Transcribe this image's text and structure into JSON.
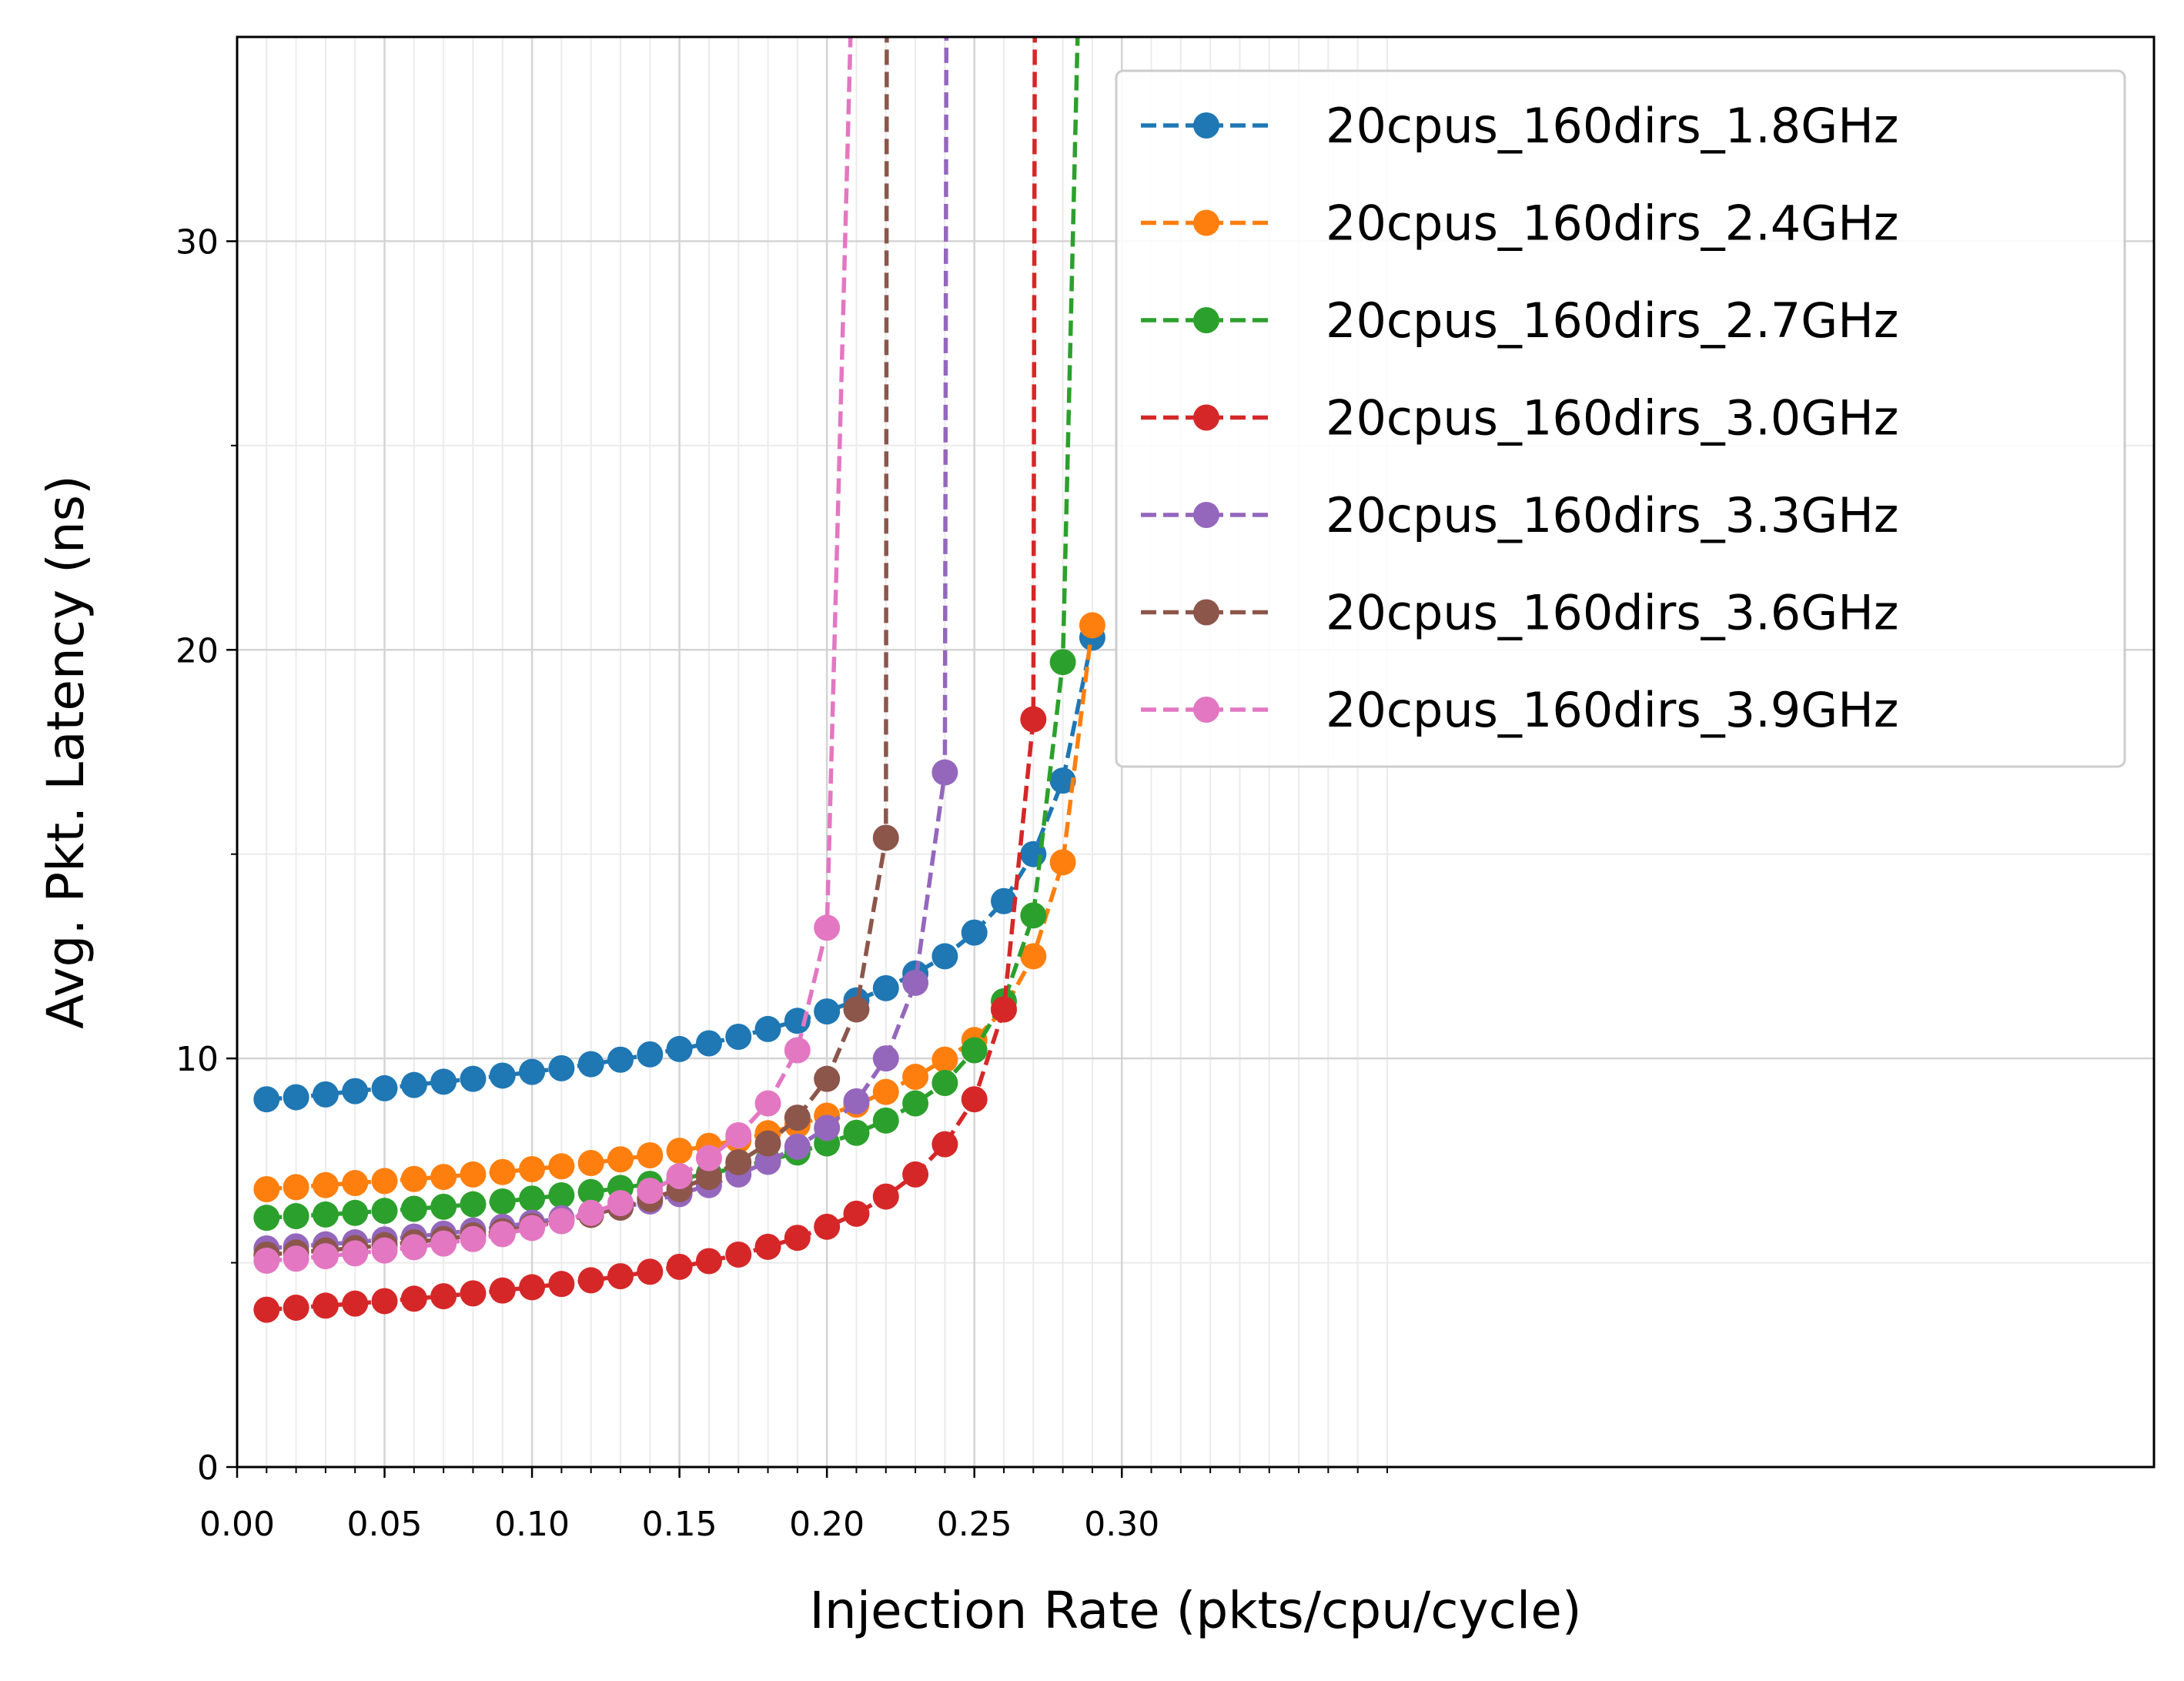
{
  "chart_data": {
    "type": "line",
    "title": "",
    "xlabel": "Injection Rate  (pkts/cpu/cycle)",
    "ylabel": "Avg. Pkt. Latency (ns)",
    "xlim": [
      0,
      0.65
    ],
    "ylim": [
      0,
      35
    ],
    "x_ticks": [
      0.0,
      0.05,
      0.1,
      0.15,
      0.2,
      0.25,
      0.3
    ],
    "x_tick_labels": [
      "0.00",
      "0.05",
      "0.10",
      "0.15",
      "0.20",
      "0.25",
      "0.30"
    ],
    "y_ticks": [
      0,
      10,
      20,
      30
    ],
    "y_tick_labels": [
      "0",
      "10",
      "20",
      "30"
    ],
    "grid": true,
    "legend_position": "top-right",
    "line_style": "dashed",
    "marker": "circle",
    "series": [
      {
        "name": "20cpus_160dirs_1.8GHz",
        "color": "#1f77b4",
        "x": [
          0.01,
          0.02,
          0.03,
          0.04,
          0.05,
          0.06,
          0.07,
          0.08,
          0.09,
          0.1,
          0.11,
          0.12,
          0.13,
          0.14,
          0.15,
          0.16,
          0.17,
          0.18,
          0.19,
          0.2,
          0.21,
          0.22,
          0.23,
          0.24,
          0.25,
          0.26,
          0.27,
          0.28,
          0.29
        ],
        "y": [
          9.0,
          9.05,
          9.12,
          9.2,
          9.27,
          9.35,
          9.43,
          9.5,
          9.58,
          9.67,
          9.76,
          9.86,
          9.97,
          10.1,
          10.23,
          10.37,
          10.53,
          10.72,
          10.92,
          11.15,
          11.42,
          11.72,
          12.08,
          12.5,
          13.08,
          13.85,
          15.0,
          16.8,
          20.3
        ]
      },
      {
        "name": "20cpus_160dirs_2.4GHz",
        "color": "#ff7f0e",
        "x": [
          0.01,
          0.02,
          0.03,
          0.04,
          0.05,
          0.06,
          0.07,
          0.08,
          0.09,
          0.1,
          0.11,
          0.12,
          0.13,
          0.14,
          0.15,
          0.16,
          0.17,
          0.18,
          0.19,
          0.2,
          0.21,
          0.22,
          0.23,
          0.24,
          0.25,
          0.26,
          0.27,
          0.28,
          0.29
        ],
        "y": [
          6.8,
          6.85,
          6.9,
          6.95,
          7.0,
          7.05,
          7.1,
          7.16,
          7.22,
          7.29,
          7.36,
          7.44,
          7.53,
          7.63,
          7.74,
          7.86,
          8.0,
          8.17,
          8.37,
          8.6,
          8.87,
          9.18,
          9.55,
          9.97,
          10.45,
          11.2,
          12.5,
          14.8,
          20.6
        ]
      },
      {
        "name": "20cpus_160dirs_2.7GHz",
        "color": "#2ca02c",
        "x": [
          0.01,
          0.02,
          0.03,
          0.04,
          0.05,
          0.06,
          0.07,
          0.08,
          0.09,
          0.1,
          0.11,
          0.12,
          0.13,
          0.14,
          0.15,
          0.16,
          0.17,
          0.18,
          0.19,
          0.2,
          0.21,
          0.22,
          0.23,
          0.24,
          0.25,
          0.26,
          0.27,
          0.28,
          0.285
        ],
        "y": [
          6.1,
          6.14,
          6.18,
          6.22,
          6.27,
          6.32,
          6.37,
          6.43,
          6.5,
          6.57,
          6.65,
          6.73,
          6.83,
          6.93,
          7.05,
          7.18,
          7.33,
          7.5,
          7.7,
          7.92,
          8.18,
          8.48,
          8.9,
          9.4,
          10.2,
          11.4,
          13.5,
          19.7,
          35
        ]
      },
      {
        "name": "20cpus_160dirs_3.0GHz",
        "color": "#d62728",
        "x": [
          0.01,
          0.02,
          0.03,
          0.04,
          0.05,
          0.06,
          0.07,
          0.08,
          0.09,
          0.1,
          0.11,
          0.12,
          0.13,
          0.14,
          0.15,
          0.16,
          0.17,
          0.18,
          0.19,
          0.2,
          0.21,
          0.22,
          0.23,
          0.24,
          0.25,
          0.26,
          0.27,
          0.2705
        ],
        "y": [
          3.85,
          3.9,
          3.95,
          4.0,
          4.06,
          4.12,
          4.18,
          4.25,
          4.32,
          4.4,
          4.48,
          4.57,
          4.67,
          4.78,
          4.9,
          5.04,
          5.2,
          5.39,
          5.61,
          5.88,
          6.2,
          6.62,
          7.16,
          7.9,
          9.0,
          11.2,
          18.3,
          35
        ]
      },
      {
        "name": "20cpus_160dirs_3.3GHz",
        "color": "#9467bd",
        "x": [
          0.01,
          0.02,
          0.03,
          0.04,
          0.05,
          0.06,
          0.07,
          0.08,
          0.09,
          0.1,
          0.11,
          0.12,
          0.13,
          0.14,
          0.15,
          0.16,
          0.17,
          0.18,
          0.19,
          0.2,
          0.21,
          0.22,
          0.23,
          0.24,
          0.2405
        ],
        "y": [
          5.35,
          5.4,
          5.45,
          5.5,
          5.57,
          5.64,
          5.71,
          5.79,
          5.88,
          5.98,
          6.09,
          6.21,
          6.35,
          6.5,
          6.68,
          6.9,
          7.16,
          7.47,
          7.84,
          8.3,
          8.95,
          10.0,
          11.85,
          17.0,
          35
        ]
      },
      {
        "name": "20cpus_160dirs_3.6GHz",
        "color": "#8c564b",
        "x": [
          0.01,
          0.02,
          0.03,
          0.04,
          0.05,
          0.06,
          0.07,
          0.08,
          0.09,
          0.1,
          0.11,
          0.12,
          0.13,
          0.14,
          0.15,
          0.16,
          0.17,
          0.18,
          0.19,
          0.2,
          0.21,
          0.22,
          0.2203
        ],
        "y": [
          5.2,
          5.25,
          5.3,
          5.36,
          5.43,
          5.5,
          5.58,
          5.67,
          5.77,
          5.89,
          6.02,
          6.17,
          6.35,
          6.56,
          6.8,
          7.1,
          7.46,
          7.92,
          8.55,
          9.5,
          11.2,
          15.4,
          35
        ]
      },
      {
        "name": "20cpus_160dirs_3.9GHz",
        "color": "#e377c2",
        "x": [
          0.01,
          0.02,
          0.03,
          0.04,
          0.05,
          0.06,
          0.07,
          0.08,
          0.09,
          0.1,
          0.11,
          0.12,
          0.13,
          0.14,
          0.15,
          0.16,
          0.17,
          0.18,
          0.19,
          0.2,
          0.208
        ],
        "y": [
          5.05,
          5.1,
          5.16,
          5.23,
          5.3,
          5.38,
          5.47,
          5.58,
          5.7,
          5.85,
          6.02,
          6.22,
          6.46,
          6.76,
          7.12,
          7.56,
          8.12,
          8.9,
          10.2,
          13.2,
          35
        ]
      }
    ]
  }
}
